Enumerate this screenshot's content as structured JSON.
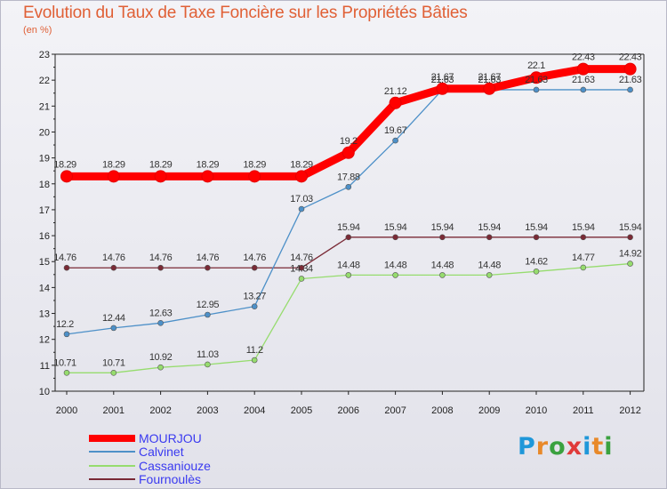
{
  "chart_data": {
    "type": "line",
    "title": "Evolution du Taux de Taxe Foncière sur les Propriétés Bâties",
    "subtitle": "(en %)",
    "xlabel": "",
    "ylabel": "",
    "ylim": [
      10,
      23
    ],
    "y_ticks": [
      "10",
      "11",
      "12",
      "13",
      "14",
      "15",
      "16",
      "17",
      "18",
      "19",
      "20",
      "21",
      "22",
      "23"
    ],
    "categories": [
      "2000",
      "2001",
      "2002",
      "2003",
      "2004",
      "2005",
      "2006",
      "2007",
      "2008",
      "2009",
      "2010",
      "2011",
      "2012"
    ],
    "grid": false,
    "legend_position": "bottom-left",
    "series": [
      {
        "name": "MOURJOU",
        "color": "#ff0000",
        "values": [
          18.29,
          18.29,
          18.29,
          18.29,
          18.29,
          18.29,
          19.2,
          21.12,
          21.67,
          21.67,
          22.1,
          22.43,
          22.43
        ],
        "labels": [
          "18.29",
          "18.29",
          "18.29",
          "18.29",
          "18.29",
          "18.29",
          "19.2",
          "21.12",
          "21.67",
          "21.67",
          "22.1",
          "22.43",
          "22.43"
        ]
      },
      {
        "name": "Calvinet",
        "color": "#4d90c8",
        "values": [
          12.2,
          12.44,
          12.63,
          12.95,
          13.27,
          17.03,
          17.88,
          19.67,
          21.63,
          21.63,
          21.63,
          21.63,
          21.63
        ],
        "labels": [
          "12.2",
          "12.44",
          "12.63",
          "12.95",
          "13.27",
          "17.03",
          "17.88",
          "19.67",
          "21.63",
          "21.63",
          "21.63",
          "21.63",
          "21.63"
        ]
      },
      {
        "name": "Cassaniouze",
        "color": "#96dc6e",
        "values": [
          10.71,
          10.71,
          10.92,
          11.03,
          11.2,
          14.34,
          14.48,
          14.48,
          14.48,
          14.48,
          14.62,
          14.77,
          14.92
        ],
        "labels": [
          "10.71",
          "10.71",
          "10.92",
          "11.03",
          "11.2",
          "14.34",
          "14.48",
          "14.48",
          "14.48",
          "14.48",
          "14.62",
          "14.77",
          "14.92"
        ]
      },
      {
        "name": "Fournoulès",
        "color": "#7a2a36",
        "values": [
          14.76,
          14.76,
          14.76,
          14.76,
          14.76,
          14.76,
          15.94,
          15.94,
          15.94,
          15.94,
          15.94,
          15.94,
          15.94
        ],
        "labels": [
          "14.76",
          "14.76",
          "14.76",
          "14.76",
          "14.76",
          "14.76",
          "15.94",
          "15.94",
          "15.94",
          "15.94",
          "15.94",
          "15.94",
          "15.94"
        ]
      }
    ]
  },
  "legend": {
    "items": [
      {
        "name": "MOURJOU",
        "color": "#ff0000"
      },
      {
        "name": "Calvinet",
        "color": "#4d90c8"
      },
      {
        "name": "Cassaniouze",
        "color": "#96dc6e"
      },
      {
        "name": "Fournoulès",
        "color": "#7a2a36"
      }
    ]
  },
  "logo": {
    "text": "Proxiti",
    "letters": [
      "P",
      "r",
      "o",
      "x",
      "i",
      "t",
      "i"
    ]
  }
}
